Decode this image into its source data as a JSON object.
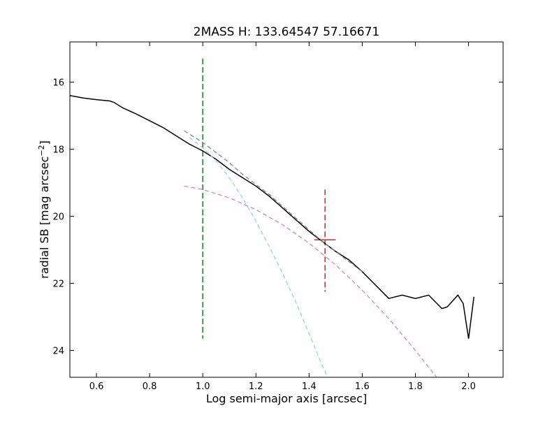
{
  "chart_data": {
    "type": "line",
    "title": "2MASS H: 133.64547 57.16671",
    "xlabel": "Log semi-major axis [arcsec]",
    "ylabel_main": "radial SB [mag arcsec",
    "ylabel_sup": "−2",
    "ylabel_close": "]",
    "xlim": [
      0.5,
      2.13
    ],
    "ylim": [
      24.8,
      14.8
    ],
    "y_inverted": true,
    "grid": false,
    "xticks": [
      0.6,
      0.8,
      1.0,
      1.2,
      1.4,
      1.6,
      1.8,
      2.0
    ],
    "xtick_labels": [
      "0.6",
      "0.8",
      "1.0",
      "1.2",
      "1.4",
      "1.6",
      "1.8",
      "2.0"
    ],
    "yticks": [
      16,
      18,
      20,
      22,
      24
    ],
    "ytick_labels": [
      "16",
      "18",
      "20",
      "22",
      "24"
    ],
    "colors": {
      "profile": "#000000",
      "bulge": "#7fd8d8",
      "disk": "#d27ad2",
      "total": "#808080",
      "inner_limit": "#1a7f1a",
      "half_light": "#e02020"
    },
    "series": [
      {
        "style": "solid",
        "color": "#000000",
        "x": [
          0.5,
          0.55,
          0.6,
          0.65,
          0.665,
          0.7,
          0.75,
          0.8,
          0.85,
          0.9,
          0.95,
          1.0,
          1.05,
          1.1,
          1.15,
          1.2,
          1.25,
          1.3,
          1.35,
          1.4,
          1.45,
          1.5,
          1.55,
          1.6,
          1.65,
          1.7,
          1.75,
          1.8,
          1.85,
          1.9,
          1.92,
          1.96,
          1.98,
          2.0,
          2.02
        ],
        "y": [
          16.4,
          16.47,
          16.52,
          16.56,
          16.6,
          16.77,
          16.95,
          17.15,
          17.35,
          17.6,
          17.85,
          18.05,
          18.3,
          18.6,
          18.85,
          19.1,
          19.4,
          19.75,
          20.1,
          20.45,
          20.75,
          21.05,
          21.3,
          21.65,
          22.05,
          22.45,
          22.35,
          22.45,
          22.35,
          22.75,
          22.7,
          22.35,
          22.6,
          23.65,
          22.4
        ]
      },
      {
        "style": "dashed",
        "color": "#7fd8d8",
        "x": [
          0.95,
          1.0,
          1.05,
          1.1,
          1.15,
          1.2,
          1.25,
          1.3,
          1.35,
          1.4,
          1.45,
          1.47
        ],
        "y": [
          17.65,
          17.95,
          18.35,
          18.85,
          19.45,
          20.15,
          20.9,
          21.7,
          22.55,
          23.5,
          24.45,
          24.8
        ]
      },
      {
        "style": "dashed",
        "color": "#d27ad2",
        "x": [
          0.93,
          1.0,
          1.1,
          1.2,
          1.3,
          1.4,
          1.5,
          1.6,
          1.7,
          1.8,
          1.88
        ],
        "y": [
          19.1,
          19.2,
          19.45,
          19.8,
          20.25,
          20.8,
          21.45,
          22.2,
          23.05,
          24.0,
          24.8
        ]
      },
      {
        "style": "dashed",
        "color": "#808080",
        "x": [
          0.93,
          1.0,
          1.05,
          1.1,
          1.15,
          1.2,
          1.25,
          1.3,
          1.35,
          1.4,
          1.45,
          1.5,
          1.55,
          1.6
        ],
        "y": [
          17.45,
          17.8,
          18.1,
          18.4,
          18.75,
          19.05,
          19.35,
          19.7,
          20.05,
          20.4,
          20.75,
          21.05,
          21.35,
          21.65
        ]
      }
    ],
    "vlines": [
      {
        "x": 1.0,
        "y_range": [
          15.3,
          23.65
        ],
        "color": "#1a7f1a",
        "style": "dashed"
      },
      {
        "x": 1.46,
        "y_range": [
          19.2,
          22.25
        ],
        "color": "#e02020",
        "style": "dashed"
      }
    ],
    "hmarks": [
      {
        "y": 20.7,
        "x_range": [
          1.42,
          1.5
        ],
        "color": "#e02020",
        "style": "solid"
      }
    ]
  }
}
